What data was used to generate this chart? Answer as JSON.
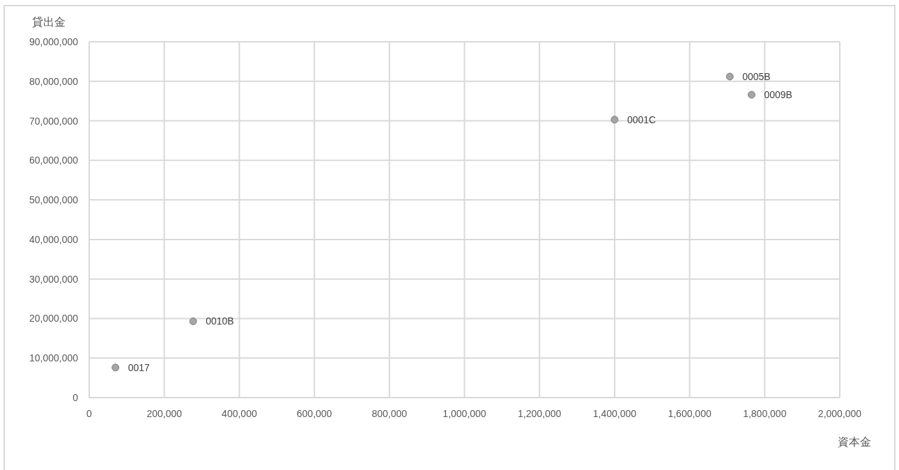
{
  "chart_data": {
    "type": "scatter",
    "xlabel": "資本金",
    "ylabel": "貸出金",
    "x": [
      70000,
      277000,
      1400000,
      1707000,
      1765000
    ],
    "series": [
      {
        "color": "#a5a5a5",
        "values": [
          7600000,
          19300000,
          70300000,
          81200000,
          76600000
        ]
      }
    ],
    "annotations": [
      {
        "text": "0017",
        "x": 70000,
        "y": 7600000
      },
      {
        "text": "0010B",
        "x": 277000,
        "y": 19300000
      },
      {
        "text": "0001C",
        "x": 1400000,
        "y": 70300000
      },
      {
        "text": "0005B",
        "x": 1707000,
        "y": 81200000
      },
      {
        "text": "0009B",
        "x": 1765000,
        "y": 76600000
      }
    ],
    "xlim": [
      0,
      2000000
    ],
    "xticks": [
      0,
      {
        "value": 200000,
        "label": "200,000"
      },
      {
        "value": 400000,
        "label": "400,000"
      },
      {
        "value": 600000,
        "label": "600,000"
      },
      {
        "value": 800000,
        "label": "800,000"
      },
      {
        "value": 1000000,
        "label": "1,000,000"
      },
      {
        "value": 1200000,
        "label": "1,200,000"
      },
      {
        "value": 1400000,
        "label": "1,400,000"
      },
      {
        "value": 1600000,
        "label": "1,600,000"
      },
      {
        "value": 1800000,
        "label": "1,800,000"
      },
      {
        "value": 2000000,
        "label": "2,000,000"
      }
    ],
    "ylim": [
      0,
      90000000
    ],
    "yticks": [
      0,
      {
        "value": 10000000,
        "label": "10,000,000"
      },
      {
        "value": 20000000,
        "label": "20,000,000"
      },
      {
        "value": 30000000,
        "label": "30,000,000"
      },
      {
        "value": 40000000,
        "label": "40,000,000"
      },
      {
        "value": 50000000,
        "label": "50,000,000"
      },
      {
        "value": 60000000,
        "label": "60,000,000"
      },
      {
        "value": 70000000,
        "label": "70,000,000"
      },
      {
        "value": 80000000,
        "label": "80,000,000"
      },
      {
        "value": 90000000,
        "label": "90,000,000"
      }
    ],
    "grid": true,
    "marker": "circle"
  }
}
